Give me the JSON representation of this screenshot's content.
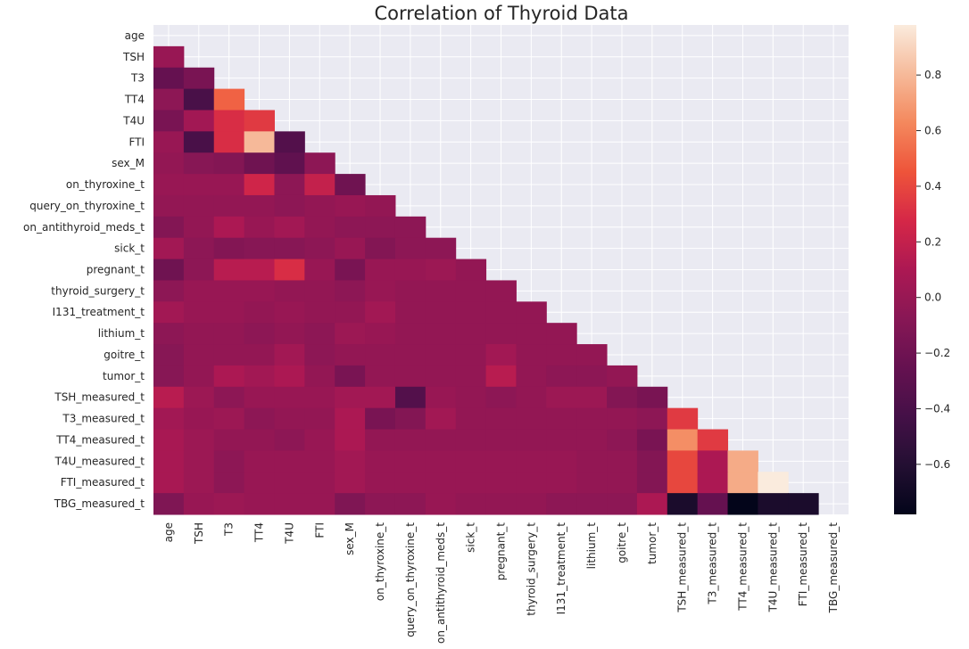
{
  "chart_data": {
    "type": "heatmap",
    "title": "Correlation of Thyroid Data",
    "xlabel": "",
    "ylabel": "",
    "mask": "upper-triangle-including-diagonal",
    "categories": [
      "age",
      "TSH",
      "T3",
      "TT4",
      "T4U",
      "FTI",
      "sex_M",
      "on_thyroxine_t",
      "query_on_thyroxine_t",
      "on_antithyroid_meds_t",
      "sick_t",
      "pregnant_t",
      "thyroid_surgery_t",
      "I131_treatment_t",
      "lithium_t",
      "goitre_t",
      "tumor_t",
      "TSH_measured_t",
      "T3_measured_t",
      "TT4_measured_t",
      "T4U_measured_t",
      "FTI_measured_t",
      "TBG_measured_t"
    ],
    "values": [
      [],
      [
        0.0
      ],
      [
        -0.25,
        -0.15
      ],
      [
        -0.05,
        -0.4,
        0.5
      ],
      [
        -0.15,
        0.05,
        0.3,
        0.35
      ],
      [
        0.0,
        -0.4,
        0.3,
        0.8,
        -0.35
      ],
      [
        -0.02,
        -0.08,
        -0.1,
        -0.2,
        -0.28,
        -0.05
      ],
      [
        0.0,
        0.0,
        0.0,
        0.25,
        -0.05,
        0.2,
        -0.2
      ],
      [
        -0.02,
        -0.02,
        -0.02,
        -0.02,
        -0.05,
        -0.02,
        0.0,
        -0.02
      ],
      [
        -0.1,
        -0.02,
        0.1,
        0.0,
        0.05,
        -0.02,
        -0.05,
        -0.05,
        -0.05
      ],
      [
        0.05,
        -0.05,
        -0.1,
        -0.08,
        -0.08,
        -0.05,
        0.0,
        -0.1,
        -0.05,
        -0.05
      ],
      [
        -0.2,
        -0.05,
        0.15,
        0.15,
        0.3,
        0.0,
        -0.15,
        0.0,
        0.0,
        0.02,
        -0.02
      ],
      [
        -0.05,
        0.0,
        0.0,
        0.0,
        -0.02,
        -0.02,
        -0.05,
        0.0,
        -0.02,
        -0.02,
        -0.02,
        -0.02
      ],
      [
        0.05,
        0.0,
        0.0,
        -0.02,
        0.0,
        -0.02,
        -0.02,
        0.05,
        -0.02,
        -0.02,
        -0.02,
        -0.02,
        -0.02
      ],
      [
        -0.05,
        -0.02,
        -0.02,
        -0.05,
        -0.02,
        -0.05,
        0.02,
        0.0,
        -0.02,
        -0.02,
        -0.02,
        -0.02,
        -0.02,
        -0.02
      ],
      [
        -0.08,
        -0.02,
        -0.02,
        -0.02,
        0.05,
        -0.05,
        -0.02,
        -0.02,
        -0.02,
        -0.02,
        -0.02,
        0.05,
        -0.02,
        -0.02,
        -0.02
      ],
      [
        -0.08,
        -0.02,
        0.1,
        0.05,
        0.1,
        -0.02,
        -0.15,
        -0.02,
        -0.02,
        -0.02,
        -0.02,
        0.15,
        -0.02,
        -0.05,
        -0.05,
        -0.02
      ],
      [
        0.15,
        0.02,
        -0.05,
        0.0,
        0.0,
        0.0,
        0.05,
        0.05,
        -0.35,
        0.0,
        -0.02,
        -0.05,
        -0.02,
        0.02,
        0.02,
        -0.1,
        -0.15
      ],
      [
        0.05,
        0.0,
        0.02,
        -0.05,
        -0.02,
        -0.02,
        0.1,
        -0.15,
        -0.1,
        0.05,
        -0.02,
        -0.02,
        -0.02,
        -0.02,
        -0.02,
        -0.02,
        -0.05,
        0.35
      ],
      [
        0.08,
        0.02,
        -0.02,
        -0.02,
        -0.05,
        0.0,
        0.1,
        -0.02,
        -0.02,
        -0.02,
        -0.02,
        -0.02,
        -0.02,
        -0.02,
        -0.02,
        -0.05,
        -0.15,
        0.65,
        0.35
      ],
      [
        0.08,
        0.02,
        -0.05,
        0.0,
        0.0,
        0.0,
        0.05,
        0.0,
        0.0,
        0.0,
        0.0,
        0.0,
        0.0,
        0.0,
        -0.02,
        -0.02,
        -0.1,
        0.4,
        0.1,
        0.75
      ],
      [
        0.08,
        0.02,
        -0.05,
        0.0,
        0.0,
        0.0,
        0.05,
        0.0,
        0.0,
        0.0,
        0.0,
        0.0,
        0.0,
        0.0,
        -0.02,
        -0.02,
        -0.1,
        0.4,
        0.1,
        0.75,
        0.98
      ],
      [
        -0.12,
        0.0,
        0.02,
        0.0,
        0.0,
        0.0,
        -0.12,
        -0.05,
        -0.05,
        0.0,
        -0.02,
        -0.02,
        -0.02,
        -0.05,
        -0.05,
        -0.05,
        0.1,
        -0.65,
        -0.25,
        -0.78,
        -0.65,
        -0.65
      ]
    ],
    "vmin": -0.78,
    "vmax": 0.98,
    "colormap": "rocket",
    "colorbar_ticks": [
      0.8,
      0.6,
      0.4,
      0.2,
      0.0,
      -0.2,
      -0.4,
      -0.6
    ],
    "colorbar_tick_labels": [
      "0.8",
      "0.6",
      "0.4",
      "0.2",
      "0.0",
      "−0.2",
      "−0.4",
      "−0.6"
    ],
    "grid": true,
    "background_color": "#eaeaf2"
  }
}
